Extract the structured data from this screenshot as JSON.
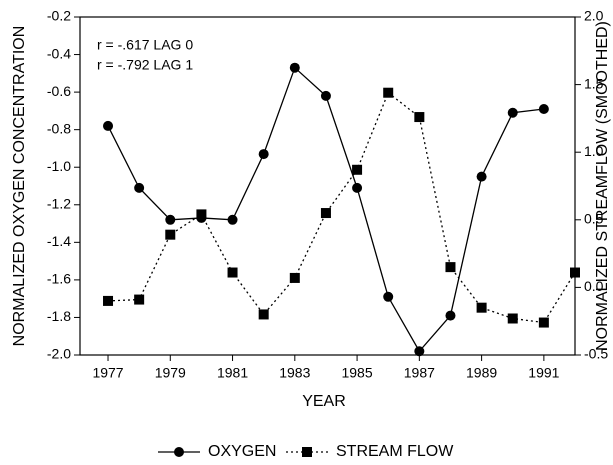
{
  "chart_data": {
    "type": "line",
    "xlabel": "YEAR",
    "ylabel": "NORMALIZED OXYGEN CONCENTRATION",
    "y2label": "NORMALIZED STREAMFLOW (SMOOTHED)",
    "annotations": [
      "r = -.617  LAG 0",
      "r = -.792  LAG 1"
    ],
    "x": [
      1977,
      1978,
      1979,
      1980,
      1981,
      1982,
      1983,
      1984,
      1985,
      1986,
      1987,
      1988,
      1989,
      1990,
      1991,
      1992
    ],
    "series": [
      {
        "name": "OXYGEN",
        "color": "#000000",
        "marker": "circle",
        "dash": "solid",
        "values": [
          -0.78,
          -1.11,
          -1.28,
          -1.27,
          -1.28,
          -0.93,
          -0.47,
          -0.62,
          -1.11,
          -1.69,
          -1.98,
          -1.79,
          -1.05,
          -0.71,
          -0.69,
          null
        ]
      },
      {
        "name": "STREAM FLOW",
        "color": "#000000",
        "marker": "square",
        "dash": "dotted",
        "axis": "y2",
        "values": [
          -0.1,
          -0.09,
          0.39,
          0.54,
          0.11,
          -0.2,
          0.07,
          0.55,
          0.87,
          1.44,
          1.26,
          0.15,
          -0.15,
          -0.23,
          -0.26,
          0.11
        ]
      }
    ],
    "xlim": [
      1976.1,
      1992
    ],
    "xticks": [
      1977,
      1979,
      1981,
      1983,
      1985,
      1987,
      1989,
      1991
    ],
    "ylim": [
      -2.0,
      -0.2
    ],
    "yticks": [
      -0.2,
      -0.4,
      -0.6,
      -0.8,
      {
        "value": -1.0,
        "label": "-1.0"
      },
      -1.2,
      -1.4,
      -1.6,
      -1.8,
      {
        "value": -2.0,
        "label": "-2.0"
      }
    ],
    "y2lim": [
      -0.5,
      2.0
    ],
    "y2ticks": [
      {
        "value": 2.0,
        "label": "2.0"
      },
      1.5,
      {
        "value": 1.0,
        "label": "1.0"
      },
      0.5,
      {
        "value": 0.0,
        "label": "0.0"
      },
      -0.5
    ],
    "grid": false,
    "legend": "bottom"
  }
}
